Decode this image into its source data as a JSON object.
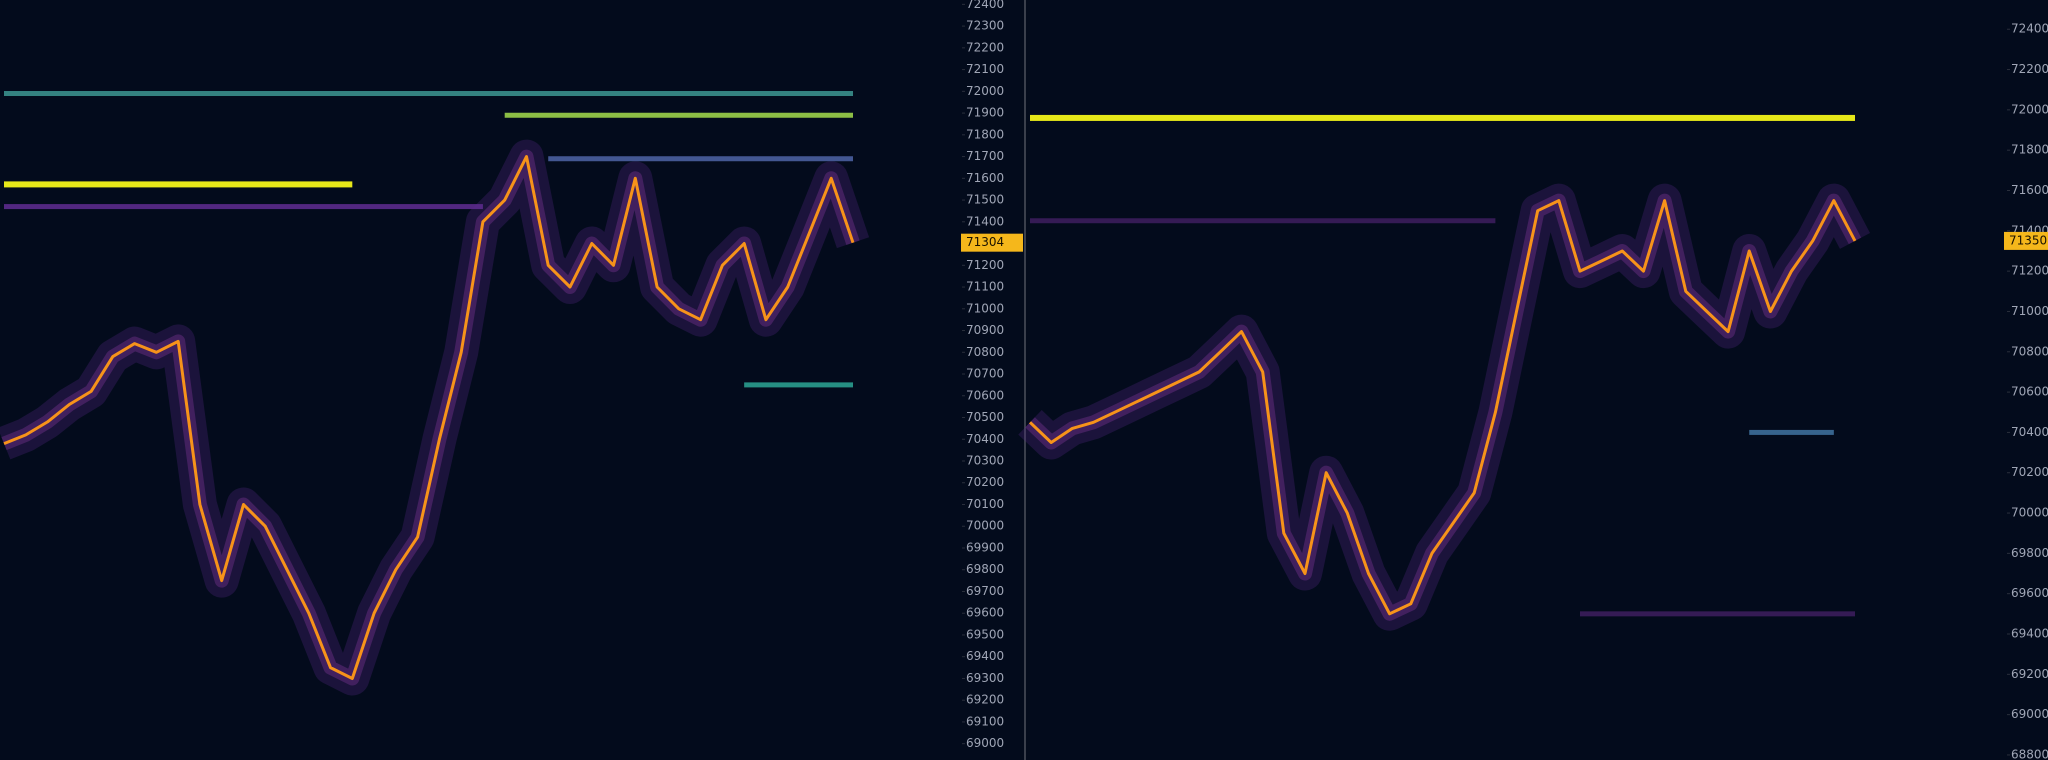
{
  "chart_data": [
    {
      "type": "line",
      "color": "#f7931a",
      "values": [
        70380,
        70420,
        70480,
        70560,
        70620,
        70780,
        70840,
        70800,
        70850,
        70100,
        69750,
        70100,
        70000,
        69800,
        69600,
        69350,
        69300,
        69600,
        69800,
        69950,
        70400,
        70800,
        71400,
        71500,
        71700,
        71200,
        71100,
        71300,
        71200,
        71600,
        71100,
        71000,
        70950,
        71200,
        71300,
        70950,
        71100,
        71350,
        71600,
        71304
      ],
      "last_price": 71304,
      "ylim": [
        68925,
        72420
      ],
      "yticks": [
        69000,
        69100,
        69200,
        69300,
        69400,
        69500,
        69600,
        69700,
        69800,
        69900,
        70000,
        70100,
        70200,
        70300,
        70400,
        70500,
        70600,
        70700,
        70800,
        70900,
        71000,
        71100,
        71200,
        71300,
        71400,
        71500,
        71600,
        71700,
        71800,
        71900,
        72000,
        72100,
        72200,
        72300,
        72400
      ],
      "levels": [
        {
          "price": 71990,
          "color": "#3a8f8c",
          "start": 0,
          "end": 39
        },
        {
          "price": 71890,
          "color": "#9bd24a",
          "start": 23,
          "end": 39
        },
        {
          "price": 71690,
          "color": "#4a5fa0",
          "start": 25,
          "end": 39
        },
        {
          "price": 71572,
          "color": "#ffff1a",
          "start": 0,
          "end": 16
        },
        {
          "price": 71470,
          "color": "#5b2a8c",
          "start": 0,
          "end": 22
        },
        {
          "price": 70650,
          "color": "#2a9d8f",
          "start": 34,
          "end": 39
        }
      ]
    },
    {
      "type": "line",
      "color": "#f7931a",
      "values": [
        70450,
        70350,
        70420,
        70450,
        70500,
        70550,
        70600,
        70650,
        70700,
        70800,
        70900,
        70700,
        69900,
        69700,
        70200,
        70000,
        69700,
        69500,
        69550,
        69800,
        69950,
        70100,
        70500,
        71000,
        71500,
        71550,
        71200,
        71250,
        71300,
        71200,
        71550,
        71100,
        71000,
        70900,
        71300,
        71000,
        71200,
        71350,
        71550,
        71350
      ],
      "last_price": 71350,
      "ylim": [
        68775,
        72545
      ],
      "yticks": [
        68800,
        69000,
        69200,
        69400,
        69600,
        69800,
        70000,
        70200,
        70400,
        70600,
        70800,
        71000,
        71200,
        71400,
        71600,
        71800,
        72000,
        72200,
        72400
      ],
      "levels": [
        {
          "price": 71960,
          "color": "#ffff1a",
          "start": 0,
          "end": 39
        },
        {
          "price": 71450,
          "color": "#3b1d5c",
          "start": 0,
          "end": 22
        },
        {
          "price": 70400,
          "color": "#3d6e9a",
          "start": 34,
          "end": 38
        },
        {
          "price": 69500,
          "color": "#3b1d5c",
          "start": 26,
          "end": 39
        }
      ]
    }
  ]
}
